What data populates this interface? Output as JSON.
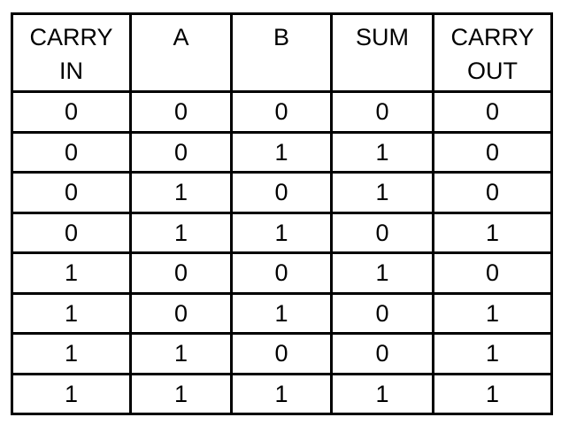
{
  "table": {
    "headers": [
      {
        "line1": "CARRY",
        "line2": "IN"
      },
      {
        "line1": "A",
        "line2": ""
      },
      {
        "line1": "B",
        "line2": ""
      },
      {
        "line1": "SUM",
        "line2": ""
      },
      {
        "line1": "CARRY",
        "line2": "OUT"
      }
    ],
    "rows": [
      [
        "0",
        "0",
        "0",
        "0",
        "0"
      ],
      [
        "0",
        "0",
        "1",
        "1",
        "0"
      ],
      [
        "0",
        "1",
        "0",
        "1",
        "0"
      ],
      [
        "0",
        "1",
        "1",
        "0",
        "1"
      ],
      [
        "1",
        "0",
        "0",
        "1",
        "0"
      ],
      [
        "1",
        "0",
        "1",
        "0",
        "1"
      ],
      [
        "1",
        "1",
        "0",
        "0",
        "1"
      ],
      [
        "1",
        "1",
        "1",
        "1",
        "1"
      ]
    ]
  }
}
